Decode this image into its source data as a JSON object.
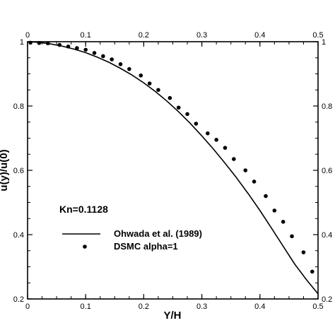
{
  "chart_data": {
    "type": "line",
    "xlabel": "Y/H",
    "ylabel": "u(y)/u(0)",
    "xlim": [
      0,
      0.5
    ],
    "ylim": [
      0.2,
      1.0
    ],
    "xticks": [
      "0",
      "0.1",
      "0.2",
      "0.3",
      "0.4",
      "0.5"
    ],
    "yticks": [
      "0.2",
      "0.4",
      "0.6",
      "0.8",
      "1"
    ],
    "annotation": "Kn=0.1128",
    "legend_position": "lower-left",
    "series": [
      {
        "name": "Ohwada et al. (1989)",
        "style": "line",
        "color": "#000000",
        "x": [
          0,
          0.02,
          0.04,
          0.06,
          0.08,
          0.1,
          0.12,
          0.14,
          0.16,
          0.18,
          0.2,
          0.22,
          0.24,
          0.26,
          0.28,
          0.3,
          0.32,
          0.34,
          0.36,
          0.38,
          0.4,
          0.42,
          0.44,
          0.46,
          0.48,
          0.5
        ],
        "y": [
          1.0,
          0.998,
          0.993,
          0.986,
          0.977,
          0.966,
          0.952,
          0.936,
          0.917,
          0.896,
          0.872,
          0.845,
          0.815,
          0.782,
          0.746,
          0.707,
          0.666,
          0.622,
          0.576,
          0.527,
          0.475,
          0.42,
          0.364,
          0.308,
          0.26,
          0.216
        ]
      },
      {
        "name": "DSMC alpha=1",
        "style": "markers",
        "color": "#000000",
        "x": [
          0.005,
          0.02,
          0.035,
          0.055,
          0.07,
          0.085,
          0.1,
          0.115,
          0.13,
          0.145,
          0.16,
          0.175,
          0.195,
          0.21,
          0.225,
          0.245,
          0.26,
          0.275,
          0.29,
          0.31,
          0.325,
          0.34,
          0.355,
          0.375,
          0.39,
          0.41,
          0.425,
          0.44,
          0.455,
          0.475,
          0.49
        ],
        "y": [
          0.997,
          0.996,
          0.995,
          0.99,
          0.985,
          0.98,
          0.975,
          0.965,
          0.955,
          0.945,
          0.93,
          0.915,
          0.895,
          0.87,
          0.85,
          0.825,
          0.795,
          0.775,
          0.745,
          0.715,
          0.695,
          0.67,
          0.635,
          0.6,
          0.565,
          0.52,
          0.475,
          0.44,
          0.395,
          0.345,
          0.285
        ]
      }
    ]
  }
}
